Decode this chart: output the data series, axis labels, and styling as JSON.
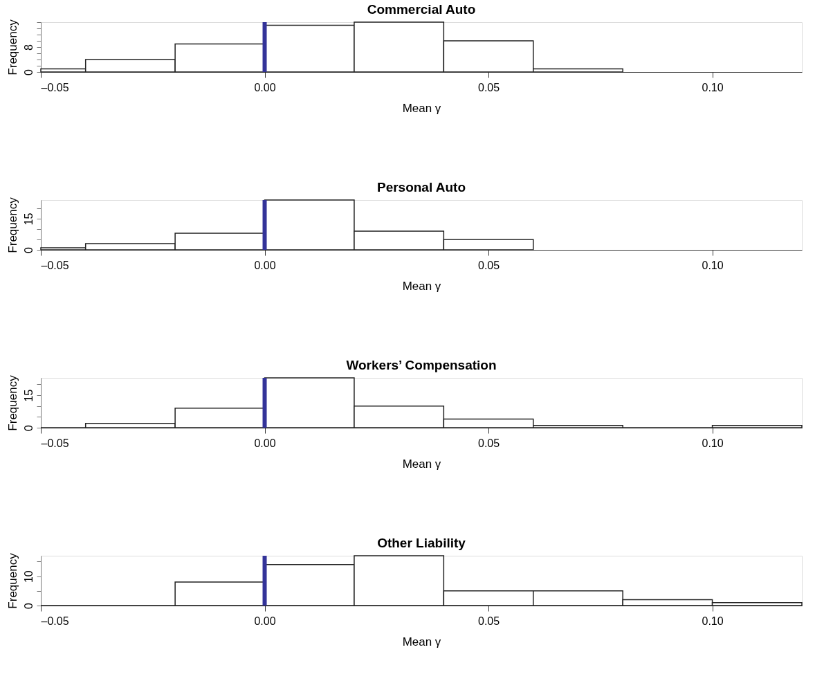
{
  "chart_data": [
    {
      "type": "histogram",
      "title": "Commercial Auto",
      "xlabel": "Mean γ",
      "ylabel": "Frequency",
      "bins": [
        -0.05,
        -0.04,
        -0.02,
        0.0,
        0.02,
        0.04,
        0.06,
        0.08
      ],
      "values": [
        1,
        4,
        9,
        15,
        16,
        10,
        1
      ],
      "xlim": [
        -0.05,
        0.12
      ],
      "xticks": [
        {
          "value": -0.05,
          "label": "–0.05"
        },
        {
          "value": 0.0,
          "label": "0.00"
        },
        {
          "value": 0.05,
          "label": "0.05"
        },
        {
          "value": 0.1,
          "label": "0.10"
        }
      ],
      "ylim": [
        0,
        16
      ],
      "yticks": [
        0,
        {
          "value": 2,
          "label": null
        },
        {
          "value": 4,
          "label": null
        },
        {
          "value": 6,
          "label": null
        },
        8,
        {
          "value": 10,
          "label": null
        },
        {
          "value": 12,
          "label": null
        },
        {
          "value": 14,
          "label": null
        },
        {
          "value": 16,
          "label": null
        }
      ],
      "ref_lines": [
        {
          "axis": "x",
          "value": 0.0,
          "color": "#333399"
        }
      ],
      "grid": false
    },
    {
      "type": "histogram",
      "title": "Personal Auto",
      "xlabel": "Mean γ",
      "ylabel": "Frequency",
      "bins": [
        -0.05,
        -0.04,
        -0.02,
        0.0,
        0.02,
        0.04,
        0.06
      ],
      "values": [
        1,
        3,
        8,
        24,
        9,
        5
      ],
      "xlim": [
        -0.05,
        0.12
      ],
      "xticks": [
        {
          "value": -0.05,
          "label": "–0.05"
        },
        {
          "value": 0.0,
          "label": "0.00"
        },
        {
          "value": 0.05,
          "label": "0.05"
        },
        {
          "value": 0.1,
          "label": "0.10"
        }
      ],
      "ylim": [
        0,
        24
      ],
      "yticks": [
        0,
        {
          "value": 5,
          "label": null
        },
        {
          "value": 10,
          "label": null
        },
        15,
        {
          "value": 20,
          "label": null
        }
      ],
      "ref_lines": [
        {
          "axis": "x",
          "value": 0.0,
          "color": "#333399"
        }
      ],
      "grid": false
    },
    {
      "type": "histogram",
      "title": "Workers’ Compensation",
      "xlabel": "Mean γ",
      "ylabel": "Frequency",
      "bins": [
        -0.05,
        -0.04,
        -0.02,
        0.0,
        0.02,
        0.04,
        0.06,
        0.08,
        0.1,
        0.12
      ],
      "values": [
        0,
        2,
        9,
        23,
        10,
        4,
        1,
        0,
        1
      ],
      "xlim": [
        -0.05,
        0.12
      ],
      "xticks": [
        {
          "value": -0.05,
          "label": "–0.05"
        },
        {
          "value": 0.0,
          "label": "0.00"
        },
        {
          "value": 0.05,
          "label": "0.05"
        },
        {
          "value": 0.1,
          "label": "0.10"
        }
      ],
      "ylim": [
        0,
        23
      ],
      "yticks": [
        0,
        {
          "value": 5,
          "label": null
        },
        {
          "value": 10,
          "label": null
        },
        15,
        {
          "value": 20,
          "label": null
        }
      ],
      "ref_lines": [
        {
          "axis": "x",
          "value": 0.0,
          "color": "#333399"
        }
      ],
      "grid": false
    },
    {
      "type": "histogram",
      "title": "Other Liability",
      "xlabel": "Mean γ",
      "ylabel": "Frequency",
      "bins": [
        -0.05,
        -0.02,
        0.0,
        0.02,
        0.04,
        0.06,
        0.08,
        0.1,
        0.12
      ],
      "values": [
        0,
        8,
        14,
        17,
        5,
        5,
        2,
        1
      ],
      "xlim": [
        -0.05,
        0.12
      ],
      "xticks": [
        {
          "value": -0.05,
          "label": "–0.05"
        },
        {
          "value": 0.0,
          "label": "0.00"
        },
        {
          "value": 0.05,
          "label": "0.05"
        },
        {
          "value": 0.1,
          "label": "0.10"
        }
      ],
      "ylim": [
        0,
        17
      ],
      "yticks": [
        0,
        {
          "value": 5,
          "label": null
        },
        10,
        {
          "value": 15,
          "label": null
        }
      ],
      "ref_lines": [
        {
          "axis": "x",
          "value": 0.0,
          "color": "#333399"
        }
      ],
      "grid": false
    }
  ]
}
